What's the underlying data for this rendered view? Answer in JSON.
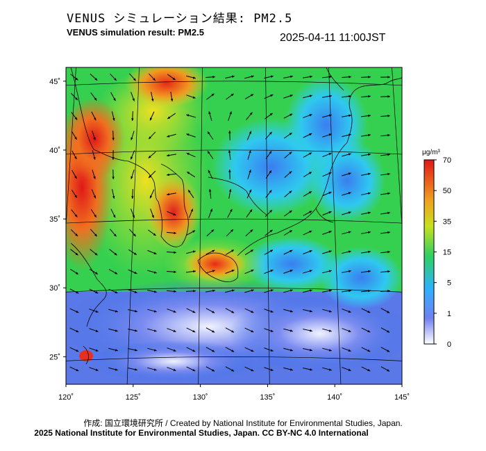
{
  "header": {
    "title_jp": "VENUS シミュレーション結果: PM2.5",
    "title_en": "VENUS simulation result: PM2.5",
    "timestamp": "2025-04-11 11:00JST"
  },
  "map": {
    "lon_range": [
      120,
      145
    ],
    "lat_range": [
      23,
      46
    ],
    "lon_ticks": [
      {
        "value": 120,
        "label": "120˚"
      },
      {
        "value": 125,
        "label": "125˚"
      },
      {
        "value": 130,
        "label": "130˚"
      },
      {
        "value": 135,
        "label": "135˚"
      },
      {
        "value": 140,
        "label": "140˚"
      },
      {
        "value": 145,
        "label": "145˚"
      }
    ],
    "lat_ticks": [
      {
        "value": 25,
        "label": "25˚"
      },
      {
        "value": 30,
        "label": "30˚"
      },
      {
        "value": 35,
        "label": "35˚"
      },
      {
        "value": 40,
        "label": "40˚"
      },
      {
        "value": 45,
        "label": "45˚"
      }
    ],
    "field": "PM2.5 concentration with wind vectors"
  },
  "colorbar": {
    "unit": "μg/m³",
    "ticks": [
      {
        "value": 0,
        "label": "0"
      },
      {
        "value": 1,
        "label": "1"
      },
      {
        "value": 5,
        "label": "5"
      },
      {
        "value": 15,
        "label": "15"
      },
      {
        "value": 35,
        "label": "35"
      },
      {
        "value": 50,
        "label": "50"
      },
      {
        "value": 70,
        "label": "70"
      }
    ],
    "colors": [
      "#ffffff",
      "#3a5ee8",
      "#2fd0ff",
      "#3ad13a",
      "#f0e020",
      "#f08020",
      "#e01818"
    ]
  },
  "credits": {
    "line1": "作成: 国立環境研究所 / Created by National Institute for Environmental Studies, Japan.",
    "line2": "2025 National Institute for Environmental Studies, Japan. CC BY-NC 4.0 International"
  }
}
